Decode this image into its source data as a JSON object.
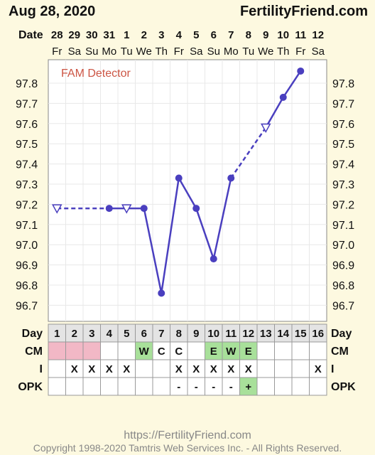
{
  "header": {
    "date": "Aug 28, 2020",
    "brand": "FertilityFriend.com"
  },
  "date_row_label": "Date",
  "dates": [
    "28",
    "29",
    "30",
    "31",
    "1",
    "2",
    "3",
    "4",
    "5",
    "6",
    "7",
    "8",
    "9",
    "10",
    "11",
    "12"
  ],
  "weekdays": [
    "Fr",
    "Sa",
    "Su",
    "Mo",
    "Tu",
    "We",
    "Th",
    "Fr",
    "Sa",
    "Su",
    "Mo",
    "Tu",
    "We",
    "Th",
    "Fr",
    "Sa"
  ],
  "detector_label": "FAM Detector",
  "footer": {
    "url": "https://FertilityFriend.com",
    "copyright": "Copyright 1998-2020 Tamtris Web Services Inc. - All Rights Reserved."
  },
  "table": {
    "day_label": "Day",
    "cm_label": "CM",
    "i_label": "I",
    "opk_label": "OPK",
    "days": [
      "1",
      "2",
      "3",
      "4",
      "5",
      "6",
      "7",
      "8",
      "9",
      "10",
      "11",
      "12",
      "13",
      "14",
      "15",
      "16"
    ],
    "cm": [
      "",
      "",
      "",
      "",
      "",
      "W",
      "C",
      "C",
      "",
      "E",
      "W",
      "E",
      "",
      "",
      "",
      ""
    ],
    "cm_pink": [
      true,
      true,
      true,
      false,
      false,
      false,
      false,
      false,
      false,
      false,
      false,
      false,
      false,
      false,
      false,
      false
    ],
    "cm_green": [
      false,
      false,
      false,
      false,
      false,
      true,
      false,
      false,
      false,
      true,
      true,
      true,
      false,
      false,
      false,
      false
    ],
    "i": [
      "",
      "X",
      "X",
      "X",
      "X",
      "",
      "",
      "X",
      "X",
      "X",
      "X",
      "X",
      "",
      "",
      "",
      "X"
    ],
    "opk": [
      "",
      "",
      "",
      "",
      "",
      "",
      "",
      "-",
      "-",
      "-",
      "-",
      "+",
      "",
      "",
      "",
      ""
    ],
    "opk_green": [
      false,
      false,
      false,
      false,
      false,
      false,
      false,
      false,
      false,
      false,
      false,
      true,
      false,
      false,
      false,
      false
    ]
  },
  "colors": {
    "background": "#fdf9e0",
    "line": "#4a3fbf",
    "pink": "#f2b8c6",
    "green": "#a8e09a",
    "detector": "#cc5544",
    "footer": "#888888"
  },
  "chart_data": {
    "type": "line",
    "x": [
      1,
      2,
      3,
      4,
      5,
      6,
      7,
      8,
      9,
      10,
      11,
      12,
      13,
      14,
      15
    ],
    "ylim": [
      96.6,
      97.9
    ],
    "yticks": [
      96.7,
      96.8,
      96.9,
      97.0,
      97.1,
      97.2,
      97.3,
      97.4,
      97.5,
      97.6,
      97.7,
      97.8
    ],
    "series": [
      {
        "values": [
          97.18,
          null,
          null,
          97.18,
          97.18,
          97.18,
          96.76,
          97.33,
          97.18,
          96.93,
          97.33,
          null,
          97.58,
          97.73,
          97.86
        ],
        "markers": [
          "open-triangle",
          null,
          null,
          "dot",
          "open-triangle",
          "dot",
          "dot",
          "dot",
          "dot",
          "dot",
          "dot",
          null,
          "open-triangle",
          "dot",
          "dot"
        ]
      }
    ],
    "dashed_segments": [
      [
        1,
        4
      ],
      [
        11,
        13
      ]
    ]
  }
}
